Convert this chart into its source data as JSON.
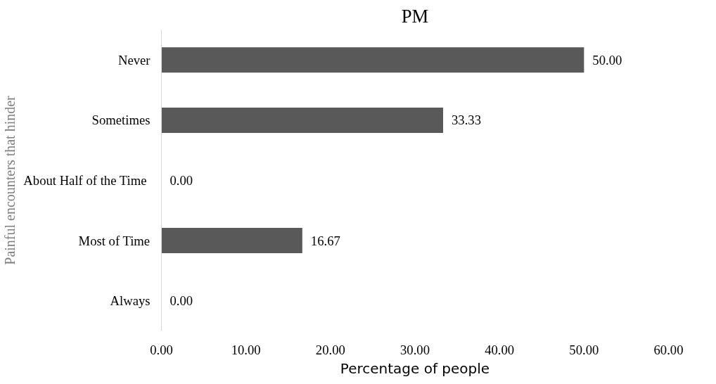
{
  "chart_data": {
    "type": "bar",
    "orientation": "horizontal",
    "title": "PM",
    "xlabel": "Percentage of people",
    "ylabel": "Painful encounters that hinder",
    "categories": [
      "Never",
      "Sometimes",
      "About Half of the  Time",
      "Most of Time",
      "Always"
    ],
    "values": [
      50.0,
      33.33,
      0.0,
      16.67,
      0.0
    ],
    "value_labels": [
      "50.00",
      "33.33",
      "0.00",
      "16.67",
      "0.00"
    ],
    "color": "#595959",
    "xlim": [
      0,
      60
    ],
    "xticks": [
      {
        "value": 0,
        "label": "0.00"
      },
      {
        "value": 10,
        "label": "10.00"
      },
      {
        "value": 20,
        "label": "20.00"
      },
      {
        "value": 30,
        "label": "30.00"
      },
      {
        "value": 40,
        "label": "40.00"
      },
      {
        "value": 50,
        "label": "50.00"
      },
      {
        "value": 60,
        "label": "60.00"
      }
    ],
    "grid": false
  }
}
